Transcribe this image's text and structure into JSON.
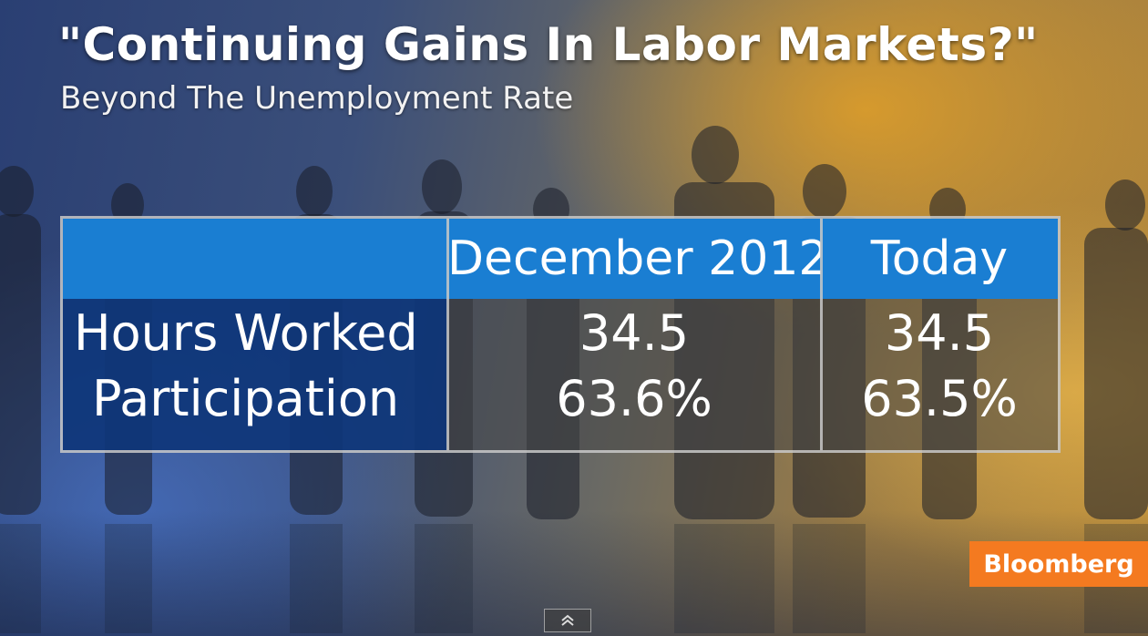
{
  "title": "\"Continuing Gains In Labor Markets?\"",
  "subtitle": "Beyond The Unemployment Rate",
  "table": {
    "columns": [
      "December 2012",
      "Today"
    ],
    "rows": [
      {
        "label": "Hours Worked",
        "values": [
          "34.5",
          "34.5"
        ]
      },
      {
        "label": "Participation",
        "values": [
          "63.6%",
          "63.5%"
        ]
      }
    ]
  },
  "brand": "Bloomberg",
  "colors": {
    "header_blue": "#1a7ed2",
    "label_navy": "#0e367a",
    "brand_orange": "#f47a20"
  },
  "icons": {
    "expand_control": "double-chevron-up-icon"
  }
}
